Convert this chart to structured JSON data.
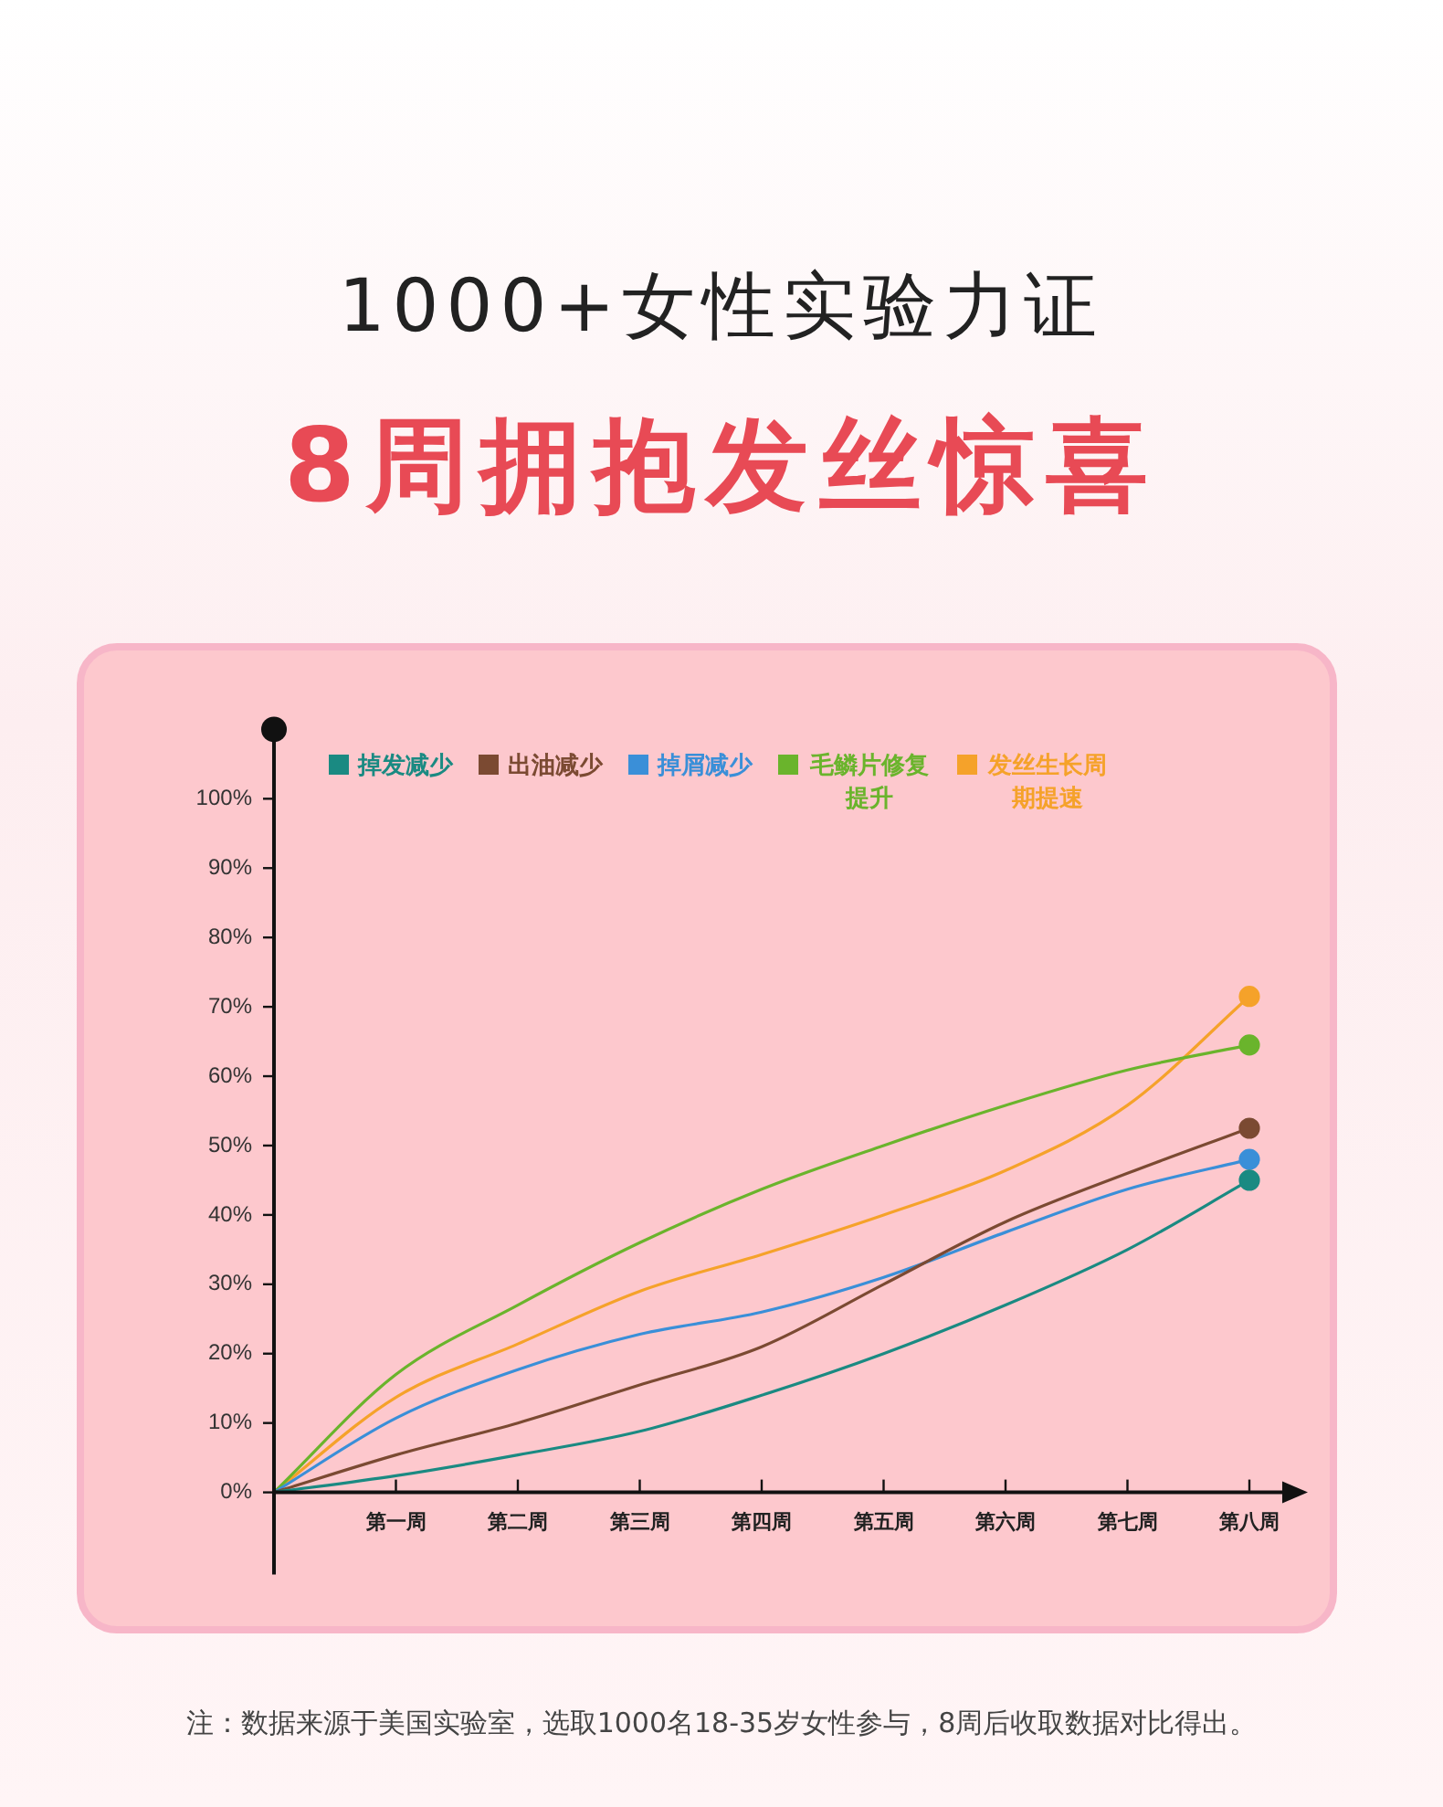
{
  "chart_data": {
    "type": "line",
    "title": "1000+女性实验力证",
    "subtitle": "8周拥抱发丝惊喜",
    "categories": [
      null,
      "第一周",
      "第二周",
      "第三周",
      "第四周",
      "第五周",
      "第六周",
      "第七周",
      "第八周"
    ],
    "series": [
      {
        "name": "掉发减少",
        "color": "#1a8a82",
        "values": [
          0,
          2.4,
          5.4,
          8.8,
          14,
          20,
          27,
          35,
          45
        ]
      },
      {
        "name": "出油减少",
        "color": "#7b4a32",
        "values": [
          0,
          5.4,
          10,
          15.5,
          21,
          30,
          39,
          46,
          52.5
        ]
      },
      {
        "name": "掉屑减少",
        "color": "#3a8fd8",
        "values": [
          0,
          10.7,
          17.7,
          22.8,
          26,
          31,
          37.5,
          43.7,
          48
        ]
      },
      {
        "name": "毛鳞片修复提升",
        "color": "#6ab42c",
        "values": [
          0,
          17,
          27,
          36,
          43.7,
          50,
          55.8,
          60.9,
          64.5
        ]
      },
      {
        "name": "发丝生长周期提速",
        "color": "#f5a22a",
        "values": [
          0,
          13.7,
          21.4,
          29,
          34.3,
          40,
          46.4,
          55.8,
          71.5
        ]
      }
    ],
    "ylim": [
      0,
      110
    ],
    "yticks": [
      {
        "value": 0,
        "label": "0%"
      },
      {
        "value": 10,
        "label": "10%"
      },
      {
        "value": 20,
        "label": "20%"
      },
      {
        "value": 30,
        "label": "30%"
      },
      {
        "value": 40,
        "label": "40%"
      },
      {
        "value": 50,
        "label": "50%"
      },
      {
        "value": 60,
        "label": "60%"
      },
      {
        "value": 70,
        "label": "70%"
      },
      {
        "value": 80,
        "label": "80%"
      },
      {
        "value": 90,
        "label": "90%"
      },
      {
        "value": 100,
        "label": "100%"
      }
    ],
    "grid": false,
    "legend": "top",
    "annotations": [
      "注：数据来源于美国实验室，选取1000名18-35岁女性参与，8周后收取数据对比得出。"
    ]
  }
}
